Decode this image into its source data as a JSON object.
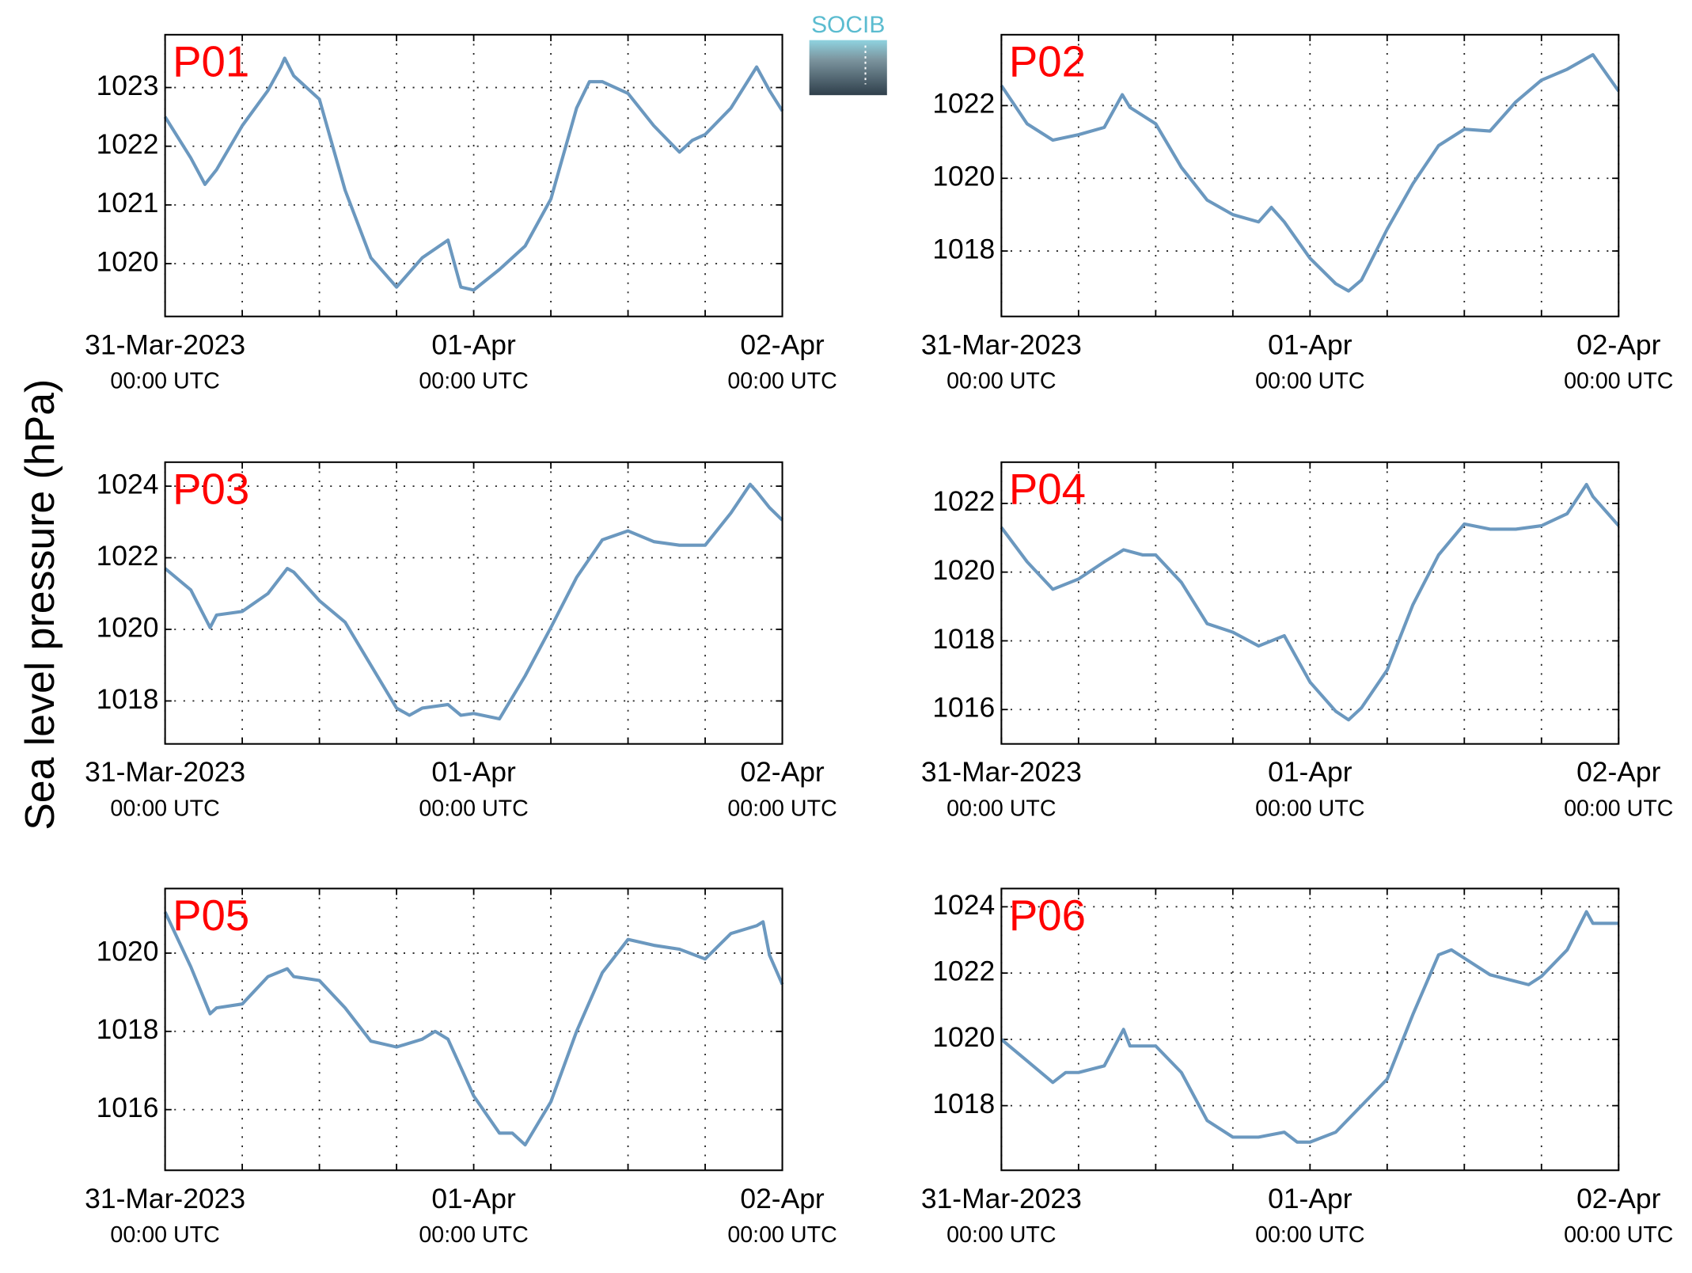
{
  "ylabel": "Sea level pressure (hPa)",
  "logo": "SOCIB",
  "chart_data": [
    {
      "type": "line",
      "title": "P01",
      "title_color": "#ff0000",
      "color": "#6b98bf",
      "grid": true,
      "x": [
        0,
        2,
        3.1,
        4,
        6,
        8,
        9,
        9.3,
        10,
        12,
        14,
        16,
        18,
        20,
        22,
        23,
        24,
        26,
        28,
        30,
        32,
        33,
        34,
        36,
        38,
        40,
        41,
        42,
        44,
        46,
        47,
        48
      ],
      "values": [
        1022.5,
        1021.8,
        1021.35,
        1021.6,
        1022.35,
        1022.95,
        1023.35,
        1023.5,
        1023.2,
        1022.8,
        1021.25,
        1020.1,
        1019.6,
        1020.1,
        1020.4,
        1019.6,
        1019.55,
        1019.9,
        1020.3,
        1021.1,
        1022.65,
        1023.1,
        1023.1,
        1022.9,
        1022.35,
        1021.9,
        1022.1,
        1022.2,
        1022.65,
        1023.35,
        1022.95,
        1022.6
      ],
      "xlim": [
        0,
        48
      ],
      "xticks": [
        {
          "value": 0,
          "label": "31-Mar-2023",
          "sublabel": "00:00 UTC"
        },
        {
          "value": 24,
          "label": "01-Apr",
          "sublabel": "00:00 UTC"
        },
        {
          "value": 48,
          "label": "02-Apr",
          "sublabel": "00:00 UTC"
        }
      ],
      "xminor": [
        6,
        12,
        18,
        30,
        36,
        42
      ],
      "ylim": [
        1019.1,
        1023.9
      ],
      "yticks": [
        1020,
        1021,
        1022,
        1023
      ]
    },
    {
      "type": "line",
      "title": "P02",
      "title_color": "#ff0000",
      "color": "#6b98bf",
      "grid": true,
      "x": [
        0,
        2,
        4,
        6,
        8,
        9.4,
        10,
        12,
        14,
        16,
        18,
        20,
        21,
        22,
        24,
        26,
        27,
        28,
        30,
        32,
        34,
        36,
        38,
        40,
        42,
        44,
        46,
        48
      ],
      "values": [
        1022.55,
        1021.5,
        1021.05,
        1021.2,
        1021.4,
        1022.3,
        1021.95,
        1021.5,
        1020.3,
        1019.4,
        1019,
        1018.8,
        1019.2,
        1018.8,
        1017.8,
        1017.1,
        1016.9,
        1017.2,
        1018.6,
        1019.85,
        1020.9,
        1021.35,
        1021.3,
        1022.1,
        1022.7,
        1023,
        1023.4,
        1022.4
      ],
      "xlim": [
        0,
        48
      ],
      "xticks": [
        {
          "value": 0,
          "label": "31-Mar-2023",
          "sublabel": "00:00 UTC"
        },
        {
          "value": 24,
          "label": "01-Apr",
          "sublabel": "00:00 UTC"
        },
        {
          "value": 48,
          "label": "02-Apr",
          "sublabel": "00:00 UTC"
        }
      ],
      "xminor": [
        6,
        12,
        18,
        30,
        36,
        42
      ],
      "ylim": [
        1016.2,
        1023.95
      ],
      "yticks": [
        1018,
        1020,
        1022
      ]
    },
    {
      "type": "line",
      "title": "P03",
      "title_color": "#ff0000",
      "color": "#6b98bf",
      "grid": true,
      "x": [
        0,
        2,
        3.5,
        4,
        6,
        8,
        9.5,
        10,
        12,
        14,
        16,
        18,
        19,
        20,
        22,
        23,
        24,
        26,
        28,
        30,
        32,
        34,
        36,
        38,
        40,
        42,
        44,
        45.5,
        46,
        47,
        48
      ],
      "values": [
        1021.7,
        1021.1,
        1020.05,
        1020.4,
        1020.5,
        1021,
        1021.7,
        1021.6,
        1020.8,
        1020.2,
        1019,
        1017.8,
        1017.6,
        1017.8,
        1017.9,
        1017.6,
        1017.65,
        1017.5,
        1018.7,
        1020.05,
        1021.45,
        1022.5,
        1022.75,
        1022.45,
        1022.35,
        1022.35,
        1023.25,
        1024.05,
        1023.85,
        1023.4,
        1023.05
      ],
      "xlim": [
        0,
        48
      ],
      "xticks": [
        {
          "value": 0,
          "label": "31-Mar-2023",
          "sublabel": "00:00 UTC"
        },
        {
          "value": 24,
          "label": "01-Apr",
          "sublabel": "00:00 UTC"
        },
        {
          "value": 48,
          "label": "02-Apr",
          "sublabel": "00:00 UTC"
        }
      ],
      "xminor": [
        6,
        12,
        18,
        30,
        36,
        42
      ],
      "ylim": [
        1016.8,
        1024.67
      ],
      "yticks": [
        1018,
        1020,
        1022,
        1024
      ]
    },
    {
      "type": "line",
      "title": "P04",
      "title_color": "#ff0000",
      "color": "#6b98bf",
      "grid": true,
      "x": [
        0,
        2,
        4,
        6,
        8,
        9.5,
        11,
        12,
        14,
        16,
        18,
        20,
        22,
        24,
        26,
        27,
        28,
        30,
        32,
        34,
        36,
        38,
        40,
        42,
        44,
        45.5,
        46,
        48
      ],
      "values": [
        1021.3,
        1020.3,
        1019.5,
        1019.8,
        1020.3,
        1020.65,
        1020.5,
        1020.5,
        1019.7,
        1018.5,
        1018.25,
        1017.85,
        1018.15,
        1016.8,
        1015.95,
        1015.7,
        1016.05,
        1017.15,
        1019.05,
        1020.5,
        1021.4,
        1021.25,
        1021.25,
        1021.35,
        1021.7,
        1022.55,
        1022.2,
        1021.35
      ],
      "xlim": [
        0,
        48
      ],
      "xticks": [
        {
          "value": 0,
          "label": "31-Mar-2023",
          "sublabel": "00:00 UTC"
        },
        {
          "value": 24,
          "label": "01-Apr",
          "sublabel": "00:00 UTC"
        },
        {
          "value": 48,
          "label": "02-Apr",
          "sublabel": "00:00 UTC"
        }
      ],
      "xminor": [
        6,
        12,
        18,
        30,
        36,
        42
      ],
      "ylim": [
        1015,
        1023.2
      ],
      "yticks": [
        1016,
        1018,
        1020,
        1022
      ]
    },
    {
      "type": "line",
      "title": "P05",
      "title_color": "#ff0000",
      "color": "#6b98bf",
      "grid": true,
      "x": [
        0,
        2,
        3.5,
        4,
        6,
        8,
        9.5,
        10,
        12,
        14,
        16,
        18,
        20,
        21,
        22,
        24,
        26,
        27,
        28,
        30,
        32,
        34,
        36,
        38,
        40,
        42,
        44,
        46,
        46.5,
        47,
        48
      ],
      "values": [
        1021.05,
        1019.65,
        1018.45,
        1018.6,
        1018.7,
        1019.4,
        1019.6,
        1019.4,
        1019.3,
        1018.6,
        1017.75,
        1017.6,
        1017.8,
        1018,
        1017.8,
        1016.35,
        1015.4,
        1015.4,
        1015.1,
        1016.2,
        1018,
        1019.5,
        1020.35,
        1020.2,
        1020.1,
        1019.85,
        1020.5,
        1020.7,
        1020.8,
        1019.95,
        1019.2
      ],
      "xlim": [
        0,
        48
      ],
      "xticks": [
        {
          "value": 0,
          "label": "31-Mar-2023",
          "sublabel": "00:00 UTC"
        },
        {
          "value": 24,
          "label": "01-Apr",
          "sublabel": "00:00 UTC"
        },
        {
          "value": 48,
          "label": "02-Apr",
          "sublabel": "00:00 UTC"
        }
      ],
      "xminor": [
        6,
        12,
        18,
        30,
        36,
        42
      ],
      "ylim": [
        1014.45,
        1021.65
      ],
      "yticks": [
        1016,
        1018,
        1020
      ]
    },
    {
      "type": "line",
      "title": "P06",
      "title_color": "#ff0000",
      "color": "#6b98bf",
      "grid": true,
      "x": [
        0,
        2,
        4,
        5,
        6,
        8,
        9.5,
        10,
        12,
        14,
        16,
        18,
        20,
        22,
        23,
        24,
        26,
        28,
        30,
        32,
        34,
        35,
        36,
        38,
        40,
        41,
        42,
        44,
        45.5,
        46,
        48
      ],
      "values": [
        1020,
        1019.35,
        1018.7,
        1019,
        1019,
        1019.2,
        1020.3,
        1019.8,
        1019.8,
        1019,
        1017.55,
        1017.05,
        1017.05,
        1017.2,
        1016.9,
        1016.9,
        1017.2,
        1018,
        1018.8,
        1020.75,
        1022.55,
        1022.7,
        1022.45,
        1021.95,
        1021.75,
        1021.65,
        1021.9,
        1022.7,
        1023.85,
        1023.5,
        1023.5
      ],
      "xlim": [
        0,
        48
      ],
      "xticks": [
        {
          "value": 0,
          "label": "31-Mar-2023",
          "sublabel": "00:00 UTC"
        },
        {
          "value": 24,
          "label": "01-Apr",
          "sublabel": "00:00 UTC"
        },
        {
          "value": 48,
          "label": "02-Apr",
          "sublabel": "00:00 UTC"
        }
      ],
      "xminor": [
        6,
        12,
        18,
        30,
        36,
        42
      ],
      "ylim": [
        1016.05,
        1024.55
      ],
      "yticks": [
        1018,
        1020,
        1022,
        1024
      ]
    }
  ]
}
